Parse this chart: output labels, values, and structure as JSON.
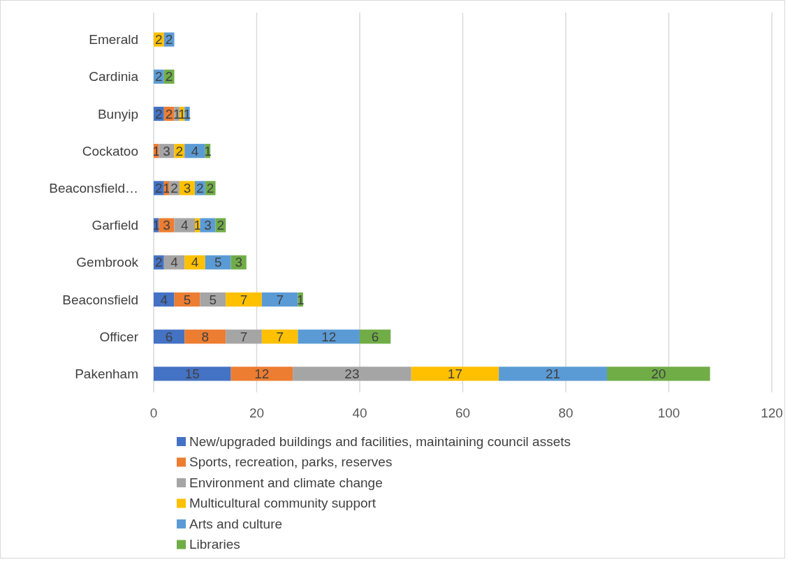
{
  "chart_data": {
    "type": "bar",
    "orientation": "horizontal",
    "stacked": true,
    "data_labels": true,
    "grid": "x",
    "legend": "bottom",
    "categories": [
      "Emerald",
      "Cardinia",
      "Bunyip",
      "Cockatoo",
      "Beaconsfield…",
      "Garfield",
      "Gembrook",
      "Beaconsfield",
      "Officer",
      "Pakenham"
    ],
    "xlim": [
      0,
      120
    ],
    "xticks": [
      0,
      20,
      40,
      60,
      80,
      100,
      120
    ],
    "series": [
      {
        "name": "New/upgraded buildings and facilities, maintaining council assets",
        "color": "#4472c4",
        "values": [
          null,
          null,
          2,
          null,
          2,
          1,
          2,
          4,
          6,
          15
        ]
      },
      {
        "name": "Sports, recreation, parks, reserves",
        "color": "#ed7d31",
        "values": [
          null,
          null,
          2,
          1,
          1,
          3,
          null,
          5,
          8,
          12
        ]
      },
      {
        "name": "Environment and climate change",
        "color": "#a5a5a5",
        "values": [
          null,
          null,
          1,
          3,
          2,
          4,
          4,
          5,
          7,
          23
        ]
      },
      {
        "name": "Multicultural community support",
        "color": "#ffc000",
        "values": [
          2,
          null,
          1,
          2,
          3,
          1,
          4,
          7,
          7,
          17
        ]
      },
      {
        "name": "Arts and culture",
        "color": "#5b9bd5",
        "values": [
          2,
          2,
          1,
          4,
          2,
          3,
          5,
          7,
          12,
          21
        ]
      },
      {
        "name": "Libraries",
        "color": "#70ad47",
        "values": [
          null,
          2,
          null,
          1,
          2,
          2,
          3,
          1,
          6,
          20
        ]
      }
    ]
  }
}
